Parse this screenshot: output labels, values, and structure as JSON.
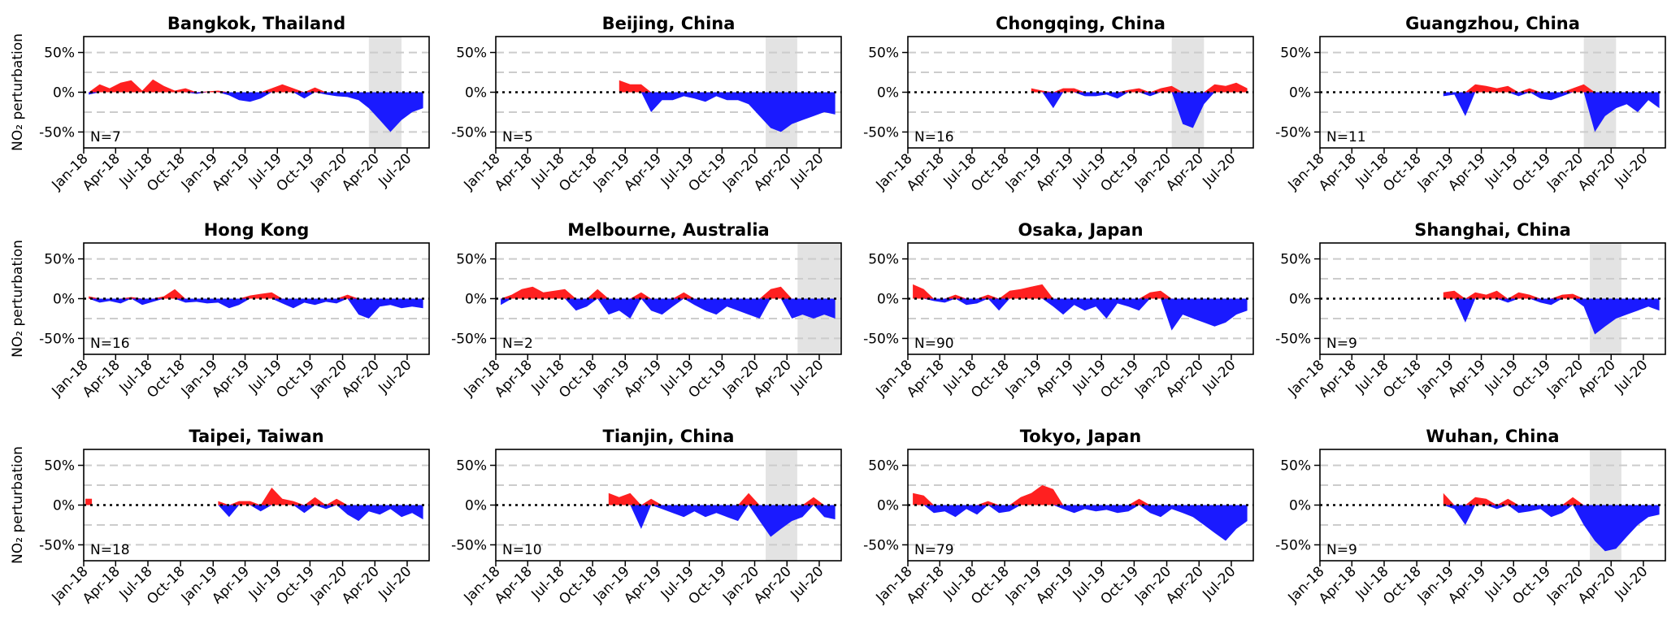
{
  "chart_data": {
    "type": "area",
    "layout": "4x3 grid of small multiples",
    "ylabel": "NO₂ perturbation",
    "ylim": [
      -0.7,
      0.7
    ],
    "yticks": [
      0.5,
      0,
      -0.5
    ],
    "ytick_labels": [
      "50%",
      "0%",
      "-50%"
    ],
    "xlim": [
      "2018-01",
      "2020-08"
    ],
    "xticks": [
      "Jan-18",
      "Apr-18",
      "Jul-18",
      "Oct-18",
      "Jan-19",
      "Apr-19",
      "Jul-19",
      "Oct-19",
      "Jan-20",
      "Apr-20",
      "Jul-20"
    ],
    "dashed_gridlines": [
      0.5,
      0.25,
      -0.25,
      -0.5
    ],
    "zero_line": "black dotted",
    "colors": {
      "positive": "#ff2020",
      "negative": "#1a1aff",
      "shade": "#e3e3e3",
      "grid": "#cccccc"
    },
    "months": [
      "Jan-18",
      "Feb-18",
      "Mar-18",
      "Apr-18",
      "May-18",
      "Jun-18",
      "Jul-18",
      "Aug-18",
      "Sep-18",
      "Oct-18",
      "Nov-18",
      "Dec-18",
      "Jan-19",
      "Feb-19",
      "Mar-19",
      "Apr-19",
      "May-19",
      "Jun-19",
      "Jul-19",
      "Aug-19",
      "Sep-19",
      "Oct-19",
      "Nov-19",
      "Dec-19",
      "Jan-20",
      "Feb-20",
      "Mar-20",
      "Apr-20",
      "May-20",
      "Jun-20",
      "Jul-20",
      "Aug-20"
    ],
    "panels": [
      {
        "title": "Bangkok, Thailand",
        "n_label": "N=7",
        "shade": [
          "2020-03-15",
          "2020-06-15"
        ],
        "values": [
          -0.03,
          0.1,
          0.05,
          0.12,
          0.15,
          0.02,
          0.16,
          0.08,
          0.02,
          0.05,
          -0.02,
          0.01,
          0.02,
          -0.04,
          -0.1,
          -0.12,
          -0.08,
          0.05,
          0.1,
          0.05,
          -0.08,
          0.06,
          -0.03,
          -0.05,
          -0.06,
          -0.1,
          -0.2,
          -0.35,
          -0.5,
          -0.35,
          -0.25,
          -0.2
        ]
      },
      {
        "title": "Beijing, China",
        "n_label": "N=5",
        "shade": [
          "2020-02-01",
          "2020-04-30"
        ],
        "values": [
          null,
          null,
          null,
          null,
          null,
          null,
          null,
          null,
          null,
          null,
          null,
          0.15,
          0.1,
          0.1,
          -0.25,
          -0.1,
          -0.1,
          -0.05,
          -0.08,
          -0.12,
          -0.05,
          -0.1,
          -0.1,
          -0.15,
          -0.3,
          -0.45,
          -0.5,
          -0.4,
          -0.35,
          -0.3,
          -0.25,
          -0.28
        ]
      },
      {
        "title": "Chongqing, China",
        "n_label": "N=16",
        "shade": [
          "2020-01-15",
          "2020-04-15"
        ],
        "values": [
          null,
          null,
          null,
          null,
          null,
          null,
          null,
          null,
          null,
          null,
          null,
          0.05,
          0.02,
          -0.2,
          0.05,
          0.05,
          -0.05,
          -0.05,
          -0.03,
          -0.08,
          0.03,
          0.05,
          -0.05,
          0.05,
          0.08,
          -0.4,
          -0.45,
          -0.15,
          0.1,
          0.08,
          0.12,
          0.05
        ]
      },
      {
        "title": "Guangzhou, China",
        "n_label": "N=11",
        "shade": [
          "2020-01-15",
          "2020-04-15"
        ],
        "values": [
          null,
          null,
          null,
          null,
          null,
          null,
          null,
          null,
          null,
          null,
          null,
          -0.05,
          -0.03,
          -0.3,
          0.1,
          0.08,
          0.05,
          0.08,
          -0.05,
          0.05,
          -0.08,
          -0.1,
          -0.05,
          0.05,
          0.1,
          -0.5,
          -0.3,
          -0.2,
          -0.15,
          -0.25,
          -0.1,
          -0.2
        ]
      },
      {
        "title": "Hong Kong",
        "n_label": "N=16",
        "shade": null,
        "values": [
          0.03,
          -0.05,
          -0.03,
          -0.06,
          0.02,
          -0.08,
          -0.04,
          0.03,
          0.12,
          -0.05,
          -0.04,
          -0.06,
          -0.05,
          -0.12,
          -0.08,
          0.04,
          0.06,
          0.08,
          -0.06,
          -0.12,
          -0.05,
          -0.08,
          -0.04,
          -0.06,
          0.05,
          -0.2,
          -0.25,
          -0.1,
          -0.08,
          -0.12,
          -0.1,
          -0.12
        ]
      },
      {
        "title": "Melbourne, Australia",
        "n_label": "N=2",
        "shade": [
          "2020-05-01",
          "2020-08-31"
        ],
        "values": [
          -0.08,
          0.05,
          0.12,
          0.15,
          0.08,
          0.1,
          0.12,
          -0.15,
          -0.1,
          0.12,
          -0.2,
          -0.15,
          -0.25,
          0.08,
          -0.15,
          -0.2,
          -0.1,
          0.08,
          -0.08,
          -0.15,
          -0.2,
          -0.1,
          -0.15,
          -0.2,
          -0.25,
          0.12,
          0.15,
          -0.25,
          -0.2,
          -0.25,
          -0.2,
          -0.25
        ]
      },
      {
        "title": "Osaka, Japan",
        "n_label": "N=90",
        "shade": null,
        "values": [
          0.18,
          0.12,
          -0.03,
          -0.05,
          0.05,
          -0.08,
          -0.06,
          0.05,
          -0.15,
          0.1,
          0.12,
          0.15,
          0.18,
          -0.1,
          -0.2,
          -0.08,
          -0.15,
          -0.1,
          -0.25,
          -0.06,
          -0.1,
          -0.15,
          0.08,
          0.1,
          -0.4,
          -0.2,
          -0.25,
          -0.3,
          -0.35,
          -0.3,
          -0.2,
          -0.15
        ]
      },
      {
        "title": "Shanghai, China",
        "n_label": "N=9",
        "shade": [
          "2020-02-01",
          "2020-04-30"
        ],
        "values": [
          null,
          null,
          null,
          null,
          null,
          null,
          null,
          null,
          null,
          null,
          null,
          0.08,
          0.1,
          -0.3,
          0.08,
          0.05,
          0.1,
          -0.05,
          0.08,
          0.05,
          -0.05,
          -0.08,
          0.05,
          0.06,
          -0.1,
          -0.45,
          -0.35,
          -0.25,
          -0.2,
          -0.15,
          -0.1,
          -0.15
        ]
      },
      {
        "title": "Taipei, Taiwan",
        "n_label": "N=18",
        "shade": null,
        "values": [
          0.08,
          null,
          null,
          null,
          null,
          null,
          null,
          null,
          null,
          null,
          null,
          null,
          0.05,
          -0.15,
          0.05,
          0.05,
          -0.08,
          0.22,
          0.08,
          0.05,
          -0.1,
          0.1,
          -0.05,
          0.08,
          -0.12,
          -0.2,
          -0.08,
          -0.12,
          -0.05,
          -0.15,
          -0.1,
          -0.18
        ]
      },
      {
        "title": "Tianjin, China",
        "n_label": "N=10",
        "shade": [
          "2020-02-01",
          "2020-04-30"
        ],
        "values": [
          null,
          null,
          null,
          null,
          null,
          null,
          null,
          null,
          null,
          null,
          0.15,
          0.1,
          0.15,
          -0.3,
          0.08,
          -0.05,
          -0.1,
          -0.15,
          -0.08,
          -0.15,
          -0.1,
          -0.15,
          -0.2,
          0.15,
          -0.2,
          -0.4,
          -0.3,
          -0.2,
          -0.15,
          0.1,
          -0.15,
          -0.18
        ]
      },
      {
        "title": "Tokyo, Japan",
        "n_label": "N=79",
        "shade": null,
        "values": [
          0.15,
          0.12,
          -0.1,
          -0.08,
          -0.15,
          -0.05,
          -0.12,
          0.05,
          -0.1,
          -0.08,
          0.1,
          0.15,
          0.25,
          0.2,
          -0.05,
          -0.1,
          -0.05,
          -0.08,
          -0.06,
          -0.1,
          -0.08,
          0.08,
          -0.1,
          -0.15,
          -0.05,
          -0.1,
          -0.15,
          -0.25,
          -0.35,
          -0.45,
          -0.3,
          -0.2
        ]
      },
      {
        "title": "Wuhan, China",
        "n_label": "N=9",
        "shade": [
          "2020-02-01",
          "2020-04-30"
        ],
        "values": [
          null,
          null,
          null,
          null,
          null,
          null,
          null,
          null,
          null,
          null,
          null,
          0.15,
          -0.05,
          -0.25,
          0.1,
          0.08,
          -0.05,
          0.08,
          -0.1,
          -0.08,
          -0.05,
          -0.15,
          -0.1,
          0.1,
          -0.25,
          -0.45,
          -0.58,
          -0.55,
          -0.4,
          -0.25,
          -0.15,
          -0.12
        ]
      }
    ]
  }
}
